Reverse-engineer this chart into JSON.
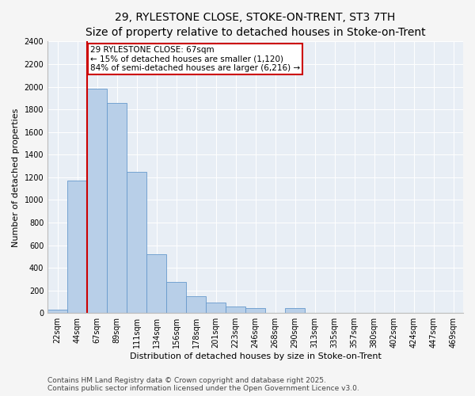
{
  "title": "29, RYLESTONE CLOSE, STOKE-ON-TRENT, ST3 7TH",
  "subtitle": "Size of property relative to detached houses in Stoke-on-Trent",
  "xlabel": "Distribution of detached houses by size in Stoke-on-Trent",
  "ylabel": "Number of detached properties",
  "categories": [
    "22sqm",
    "44sqm",
    "67sqm",
    "89sqm",
    "111sqm",
    "134sqm",
    "156sqm",
    "178sqm",
    "201sqm",
    "223sqm",
    "246sqm",
    "268sqm",
    "290sqm",
    "313sqm",
    "335sqm",
    "357sqm",
    "380sqm",
    "402sqm",
    "424sqm",
    "447sqm",
    "469sqm"
  ],
  "values": [
    30,
    1170,
    1980,
    1860,
    1250,
    520,
    275,
    150,
    90,
    60,
    40,
    0,
    40,
    0,
    0,
    0,
    0,
    0,
    0,
    0,
    0
  ],
  "bar_color": "#b8cfe8",
  "bar_edge_color": "#6699cc",
  "vline_color": "#cc0000",
  "vline_x": 1.5,
  "annotation_text": "29 RYLESTONE CLOSE: 67sqm\n← 15% of detached houses are smaller (1,120)\n84% of semi-detached houses are larger (6,216) →",
  "annotation_box_facecolor": "#ffffff",
  "annotation_box_edgecolor": "#cc0000",
  "footer_line1": "Contains HM Land Registry data © Crown copyright and database right 2025.",
  "footer_line2": "Contains public sector information licensed under the Open Government Licence v3.0.",
  "ylim": [
    0,
    2400
  ],
  "yticks": [
    0,
    200,
    400,
    600,
    800,
    1000,
    1200,
    1400,
    1600,
    1800,
    2000,
    2200,
    2400
  ],
  "fig_bg": "#f5f5f5",
  "plot_bg": "#e8eef5",
  "grid_color": "#ffffff",
  "title_fontsize": 10,
  "subtitle_fontsize": 8.5,
  "axis_label_fontsize": 8,
  "tick_fontsize": 7,
  "annotation_fontsize": 7.5,
  "footer_fontsize": 6.5
}
